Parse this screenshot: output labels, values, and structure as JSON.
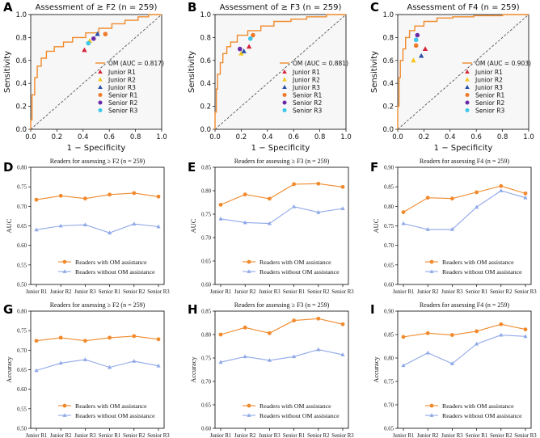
{
  "panel_letters": [
    "A",
    "B",
    "C",
    "D",
    "E",
    "F",
    "G",
    "H",
    "I"
  ],
  "roc_legend_labels": [
    "Junior R1",
    "Junior R2",
    "Junior R3",
    "Senior R1",
    "Senior R2",
    "Senior R3"
  ],
  "colors": {
    "om": "#f08a2c",
    "without": "#8fa8e8",
    "reader_markers": [
      "#d6243a",
      "#f5c518",
      "#2a4fa8",
      "#f07a2a",
      "#6a2aa8",
      "#3cc6e8"
    ]
  },
  "chart_data": [
    {
      "type": "line",
      "panel": "A",
      "title": "Assessment of ≥ F2 (n = 259)",
      "xlabel": "1 − Specificity",
      "ylabel": "Sensitivity",
      "xlim": [
        0,
        1
      ],
      "ylim": [
        0,
        1
      ],
      "xticks": [
        "0.0",
        "0.2",
        "0.4",
        "0.6",
        "0.8",
        "1.0"
      ],
      "yticks": [
        "0.0",
        "0.2",
        "0.4",
        "0.6",
        "0.8",
        "1.0"
      ],
      "legend": "bottom-right",
      "series": [
        {
          "name": "OM (AUC = 0.817)",
          "x": [
            0,
            0,
            0.01,
            0.01,
            0.03,
            0.03,
            0.05,
            0.05,
            0.08,
            0.08,
            0.12,
            0.12,
            0.18,
            0.18,
            0.25,
            0.25,
            0.32,
            0.32,
            0.42,
            0.42,
            0.52,
            0.52,
            0.62,
            0.62,
            0.72,
            0.72,
            0.82,
            0.82,
            0.9,
            0.9,
            1.0
          ],
          "y": [
            0,
            0.08,
            0.08,
            0.3,
            0.3,
            0.45,
            0.45,
            0.55,
            0.55,
            0.62,
            0.62,
            0.68,
            0.68,
            0.72,
            0.72,
            0.76,
            0.76,
            0.8,
            0.8,
            0.84,
            0.84,
            0.88,
            0.88,
            0.92,
            0.92,
            0.95,
            0.95,
            0.98,
            0.98,
            1.0,
            1.0
          ]
        },
        {
          "name": "",
          "x": [
            0,
            1
          ],
          "y": [
            0,
            1
          ]
        }
      ],
      "readers": [
        {
          "name": "Junior R1",
          "x": 0.41,
          "y": 0.69,
          "marker": "triangle"
        },
        {
          "name": "Junior R2",
          "x": 0.45,
          "y": 0.77,
          "marker": "triangle"
        },
        {
          "name": "Junior R3",
          "x": 0.51,
          "y": 0.83,
          "marker": "triangle"
        },
        {
          "name": "Senior R1",
          "x": 0.57,
          "y": 0.83,
          "marker": "circle"
        },
        {
          "name": "Senior R2",
          "x": 0.48,
          "y": 0.79,
          "marker": "circle"
        },
        {
          "name": "Senior R3",
          "x": 0.44,
          "y": 0.75,
          "marker": "circle"
        }
      ]
    },
    {
      "type": "line",
      "panel": "B",
      "title": "Assessment of ≥ F3 (n = 259)",
      "xlabel": "1 − Specificity",
      "ylabel": "Sensitivity",
      "xlim": [
        0,
        1
      ],
      "ylim": [
        0,
        1
      ],
      "xticks": [
        "0.0",
        "0.2",
        "0.4",
        "0.6",
        "0.8",
        "1.0"
      ],
      "yticks": [
        "0.0",
        "0.2",
        "0.4",
        "0.6",
        "0.8",
        "1.0"
      ],
      "legend": "bottom-right",
      "series": [
        {
          "name": "OM (AUC = 0.881)",
          "x": [
            0,
            0,
            0.01,
            0.01,
            0.02,
            0.02,
            0.04,
            0.04,
            0.06,
            0.06,
            0.09,
            0.09,
            0.12,
            0.12,
            0.17,
            0.17,
            0.25,
            0.25,
            0.35,
            0.35,
            0.45,
            0.45,
            0.58,
            0.58,
            0.7,
            0.7,
            0.85,
            0.85,
            1.0
          ],
          "y": [
            0,
            0.15,
            0.15,
            0.35,
            0.35,
            0.48,
            0.48,
            0.58,
            0.58,
            0.66,
            0.66,
            0.72,
            0.72,
            0.76,
            0.76,
            0.82,
            0.82,
            0.86,
            0.86,
            0.9,
            0.9,
            0.94,
            0.94,
            0.96,
            0.96,
            0.98,
            0.98,
            1.0,
            1.0
          ]
        },
        {
          "name": "",
          "x": [
            0,
            1
          ],
          "y": [
            0,
            1
          ]
        }
      ],
      "readers": [
        {
          "name": "Junior R1",
          "x": 0.26,
          "y": 0.72,
          "marker": "triangle"
        },
        {
          "name": "Junior R2",
          "x": 0.2,
          "y": 0.66,
          "marker": "triangle"
        },
        {
          "name": "Junior R3",
          "x": 0.22,
          "y": 0.68,
          "marker": "triangle"
        },
        {
          "name": "Senior R1",
          "x": 0.29,
          "y": 0.82,
          "marker": "circle"
        },
        {
          "name": "Senior R2",
          "x": 0.19,
          "y": 0.7,
          "marker": "circle"
        },
        {
          "name": "Senior R3",
          "x": 0.27,
          "y": 0.79,
          "marker": "circle"
        }
      ]
    },
    {
      "type": "line",
      "panel": "C",
      "title": "Assessment of F4 (n = 259)",
      "xlabel": "1 − Specificity",
      "ylabel": "Sensitivity",
      "xlim": [
        0,
        1
      ],
      "ylim": [
        0,
        1
      ],
      "xticks": [
        "0.0",
        "0.2",
        "0.4",
        "0.6",
        "0.8",
        "1.0"
      ],
      "yticks": [
        "0.0",
        "0.2",
        "0.4",
        "0.6",
        "0.8",
        "1.0"
      ],
      "legend": "bottom-right",
      "series": [
        {
          "name": "OM (AUC = 0.903)",
          "x": [
            0,
            0,
            0.01,
            0.01,
            0.02,
            0.02,
            0.04,
            0.04,
            0.06,
            0.06,
            0.09,
            0.09,
            0.13,
            0.13,
            0.2,
            0.2,
            0.3,
            0.3,
            0.42,
            0.42,
            0.58,
            0.58,
            0.8,
            0.8,
            1.0
          ],
          "y": [
            0,
            0.2,
            0.2,
            0.45,
            0.45,
            0.6,
            0.6,
            0.7,
            0.7,
            0.8,
            0.8,
            0.86,
            0.86,
            0.9,
            0.9,
            0.94,
            0.94,
            0.97,
            0.97,
            0.98,
            0.98,
            0.99,
            0.99,
            1.0,
            1.0
          ]
        },
        {
          "name": "",
          "x": [
            0,
            1
          ],
          "y": [
            0,
            1
          ]
        }
      ],
      "readers": [
        {
          "name": "Junior R1",
          "x": 0.21,
          "y": 0.7,
          "marker": "triangle"
        },
        {
          "name": "Junior R2",
          "x": 0.12,
          "y": 0.6,
          "marker": "triangle"
        },
        {
          "name": "Junior R3",
          "x": 0.18,
          "y": 0.64,
          "marker": "triangle"
        },
        {
          "name": "Senior R1",
          "x": 0.14,
          "y": 0.73,
          "marker": "circle"
        },
        {
          "name": "Senior R2",
          "x": 0.15,
          "y": 0.82,
          "marker": "circle"
        },
        {
          "name": "Senior R3",
          "x": 0.14,
          "y": 0.78,
          "marker": "circle"
        }
      ]
    },
    {
      "type": "line",
      "panel": "D",
      "title": "Readers for assessing ≥ F2 (n = 259)",
      "ylabel": "AUC",
      "ylim": [
        0.5,
        0.8
      ],
      "yticks": [
        "0.50",
        "0.55",
        "0.60",
        "0.65",
        "0.70",
        "0.75",
        "0.80"
      ],
      "categories": [
        "Junior R1",
        "Junior R2",
        "Junior R3",
        "Senior R1",
        "Senior R2",
        "Senior R3"
      ],
      "legend": "bottom-center",
      "series": [
        {
          "name": "Readers with OM assistance",
          "values": [
            0.717,
            0.727,
            0.72,
            0.73,
            0.734,
            0.725
          ]
        },
        {
          "name": "Readers without OM assistance",
          "values": [
            0.64,
            0.65,
            0.653,
            0.632,
            0.655,
            0.648
          ]
        }
      ]
    },
    {
      "type": "line",
      "panel": "E",
      "title": "Readers for assessing ≥ F3 (n = 259)",
      "ylabel": "AUC",
      "ylim": [
        0.6,
        0.85
      ],
      "yticks": [
        "0.60",
        "0.65",
        "0.70",
        "0.75",
        "0.80",
        "0.85"
      ],
      "categories": [
        "Junior R1",
        "Junior R2",
        "Junior R3",
        "Senior R1",
        "Senior R2",
        "Senior R3"
      ],
      "legend": "bottom-center",
      "series": [
        {
          "name": "Readers with OM assistance",
          "values": [
            0.77,
            0.792,
            0.783,
            0.814,
            0.815,
            0.808
          ]
        },
        {
          "name": "Readers without OM assistance",
          "values": [
            0.74,
            0.732,
            0.73,
            0.766,
            0.754,
            0.762
          ]
        }
      ]
    },
    {
      "type": "line",
      "panel": "F",
      "title": "Readers for assessing F4 (n = 259)",
      "ylabel": "AUC",
      "ylim": [
        0.6,
        0.9
      ],
      "yticks": [
        "0.60",
        "0.65",
        "0.70",
        "0.75",
        "0.80",
        "0.85",
        "0.90"
      ],
      "categories": [
        "Junior R1",
        "Junior R2",
        "Junior R3",
        "Senior R1",
        "Senior R2",
        "Senior R3"
      ],
      "legend": "bottom-center",
      "series": [
        {
          "name": "Readers with OM assistance",
          "values": [
            0.785,
            0.822,
            0.82,
            0.836,
            0.852,
            0.833
          ]
        },
        {
          "name": "Readers without OM assistance",
          "values": [
            0.756,
            0.741,
            0.741,
            0.798,
            0.84,
            0.822
          ]
        }
      ]
    },
    {
      "type": "line",
      "panel": "G",
      "title": "Readers for assessing ≥ F2 (n = 259)",
      "ylabel": "Accuracy",
      "ylim": [
        0.5,
        0.8
      ],
      "yticks": [
        "0.50",
        "0.55",
        "0.60",
        "0.65",
        "0.70",
        "0.75",
        "0.80"
      ],
      "categories": [
        "Junior R1",
        "Junior R2",
        "Junior R3",
        "Senior R1",
        "Senior R2",
        "Senior R3"
      ],
      "legend": "bottom-center",
      "series": [
        {
          "name": "Readers with OM assistance",
          "values": [
            0.724,
            0.732,
            0.724,
            0.732,
            0.736,
            0.728
          ]
        },
        {
          "name": "Readers without OM assistance",
          "values": [
            0.648,
            0.667,
            0.676,
            0.656,
            0.672,
            0.66
          ]
        }
      ]
    },
    {
      "type": "line",
      "panel": "H",
      "title": "Readers for assessing ≥ F3 (n = 259)",
      "ylabel": "Accuracy",
      "ylim": [
        0.6,
        0.85
      ],
      "yticks": [
        "0.60",
        "0.65",
        "0.70",
        "0.75",
        "0.80",
        "0.85"
      ],
      "categories": [
        "Junior R1",
        "Junior R2",
        "Junior R3",
        "Senior R1",
        "Senior R2",
        "Senior R3"
      ],
      "legend": "bottom-center",
      "series": [
        {
          "name": "Readers with OM assistance",
          "values": [
            0.8,
            0.815,
            0.803,
            0.83,
            0.834,
            0.822
          ]
        },
        {
          "name": "Readers without OM assistance",
          "values": [
            0.741,
            0.753,
            0.745,
            0.753,
            0.768,
            0.757
          ]
        }
      ]
    },
    {
      "type": "line",
      "panel": "I",
      "title": "Readers for assessing F4 (n = 259)",
      "ylabel": "Accuracy",
      "ylim": [
        0.65,
        0.9
      ],
      "yticks": [
        "0.65",
        "0.70",
        "0.75",
        "0.80",
        "0.85",
        "0.90"
      ],
      "categories": [
        "Junior R1",
        "Junior R2",
        "Junior R3",
        "Senior R1",
        "Senior R2",
        "Senior R3"
      ],
      "legend": "bottom-center",
      "series": [
        {
          "name": "Readers with OM assistance",
          "values": [
            0.845,
            0.853,
            0.849,
            0.857,
            0.872,
            0.861
          ]
        },
        {
          "name": "Readers without OM assistance",
          "values": [
            0.784,
            0.811,
            0.788,
            0.83,
            0.849,
            0.846
          ]
        }
      ]
    }
  ]
}
